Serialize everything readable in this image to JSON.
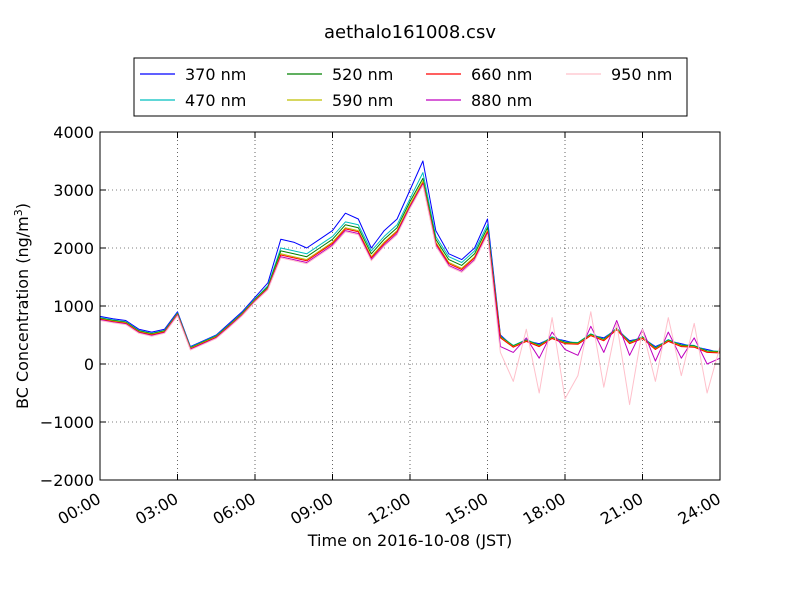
{
  "chart_data": {
    "type": "line",
    "title": "aethalo161008.csv",
    "xlabel": "Time on 2016-10-08 (JST)",
    "ylabel": "BC Concentration (ng/m³)",
    "ylabel_main": "BC Concentration (ng/m",
    "ylabel_sup": "3",
    "ylabel_end": ")",
    "xlim": [
      "00:00",
      "24:00"
    ],
    "ylim": [
      -2000,
      4000
    ],
    "x_ticks": [
      "00:00",
      "03:00",
      "06:00",
      "09:00",
      "12:00",
      "15:00",
      "18:00",
      "21:00",
      "24:00"
    ],
    "y_ticks": [
      "4000",
      "3000",
      "2000",
      "1000",
      "0",
      "−1000",
      "−2000"
    ],
    "grid": true,
    "legend_position": "top-center",
    "x_hours": [
      0,
      0.5,
      1,
      1.5,
      2,
      2.5,
      3,
      3.5,
      4,
      4.5,
      5,
      5.5,
      6,
      6.5,
      7,
      7.5,
      8,
      8.5,
      9,
      9.5,
      10,
      10.5,
      11,
      11.5,
      12,
      12.5,
      13,
      13.5,
      14,
      14.5,
      15,
      15.5,
      16,
      16.5,
      17,
      17.5,
      18,
      18.5,
      19,
      19.5,
      20,
      20.5,
      21,
      21.5,
      22,
      22.5,
      23,
      23.5,
      24
    ],
    "series": [
      {
        "name": "370 nm",
        "color": "#0000ff",
        "values": [
          820,
          780,
          750,
          600,
          550,
          600,
          900,
          300,
          400,
          500,
          700,
          900,
          1150,
          1400,
          2150,
          2100,
          2000,
          2150,
          2300,
          2600,
          2500,
          2000,
          2300,
          2500,
          3000,
          3500,
          2300,
          1900,
          1800,
          2000,
          2500,
          500,
          300,
          400,
          350,
          450,
          400,
          350,
          500,
          450,
          600,
          400,
          450,
          300,
          400,
          350,
          300,
          250,
          200
        ]
      },
      {
        "name": "470 nm",
        "color": "#00bfbf",
        "values": [
          800,
          760,
          730,
          580,
          530,
          580,
          880,
          290,
          390,
          490,
          680,
          880,
          1120,
          1350,
          2000,
          1950,
          1900,
          2050,
          2200,
          2450,
          2400,
          1950,
          2200,
          2400,
          2850,
          3300,
          2200,
          1850,
          1750,
          1950,
          2400,
          480,
          320,
          420,
          330,
          470,
          380,
          370,
          520,
          430,
          620,
          380,
          470,
          280,
          420,
          330,
          320,
          230,
          220
        ]
      },
      {
        "name": "520 nm",
        "color": "#008000",
        "values": [
          790,
          750,
          720,
          570,
          520,
          570,
          870,
          280,
          380,
          480,
          670,
          870,
          1110,
          1330,
          1950,
          1900,
          1850,
          2000,
          2150,
          2400,
          2350,
          1900,
          2150,
          2350,
          2800,
          3200,
          2150,
          1800,
          1700,
          1900,
          2350,
          470,
          310,
          410,
          320,
          460,
          370,
          360,
          510,
          420,
          610,
          370,
          460,
          270,
          410,
          320,
          310,
          220,
          210
        ]
      },
      {
        "name": "590 nm",
        "color": "#bfbf00",
        "values": [
          780,
          740,
          710,
          560,
          510,
          560,
          860,
          270,
          370,
          470,
          660,
          860,
          1100,
          1310,
          1900,
          1850,
          1800,
          1950,
          2100,
          2350,
          2300,
          1850,
          2100,
          2300,
          2750,
          3150,
          2100,
          1750,
          1650,
          1850,
          2300,
          460,
          300,
          400,
          310,
          450,
          360,
          350,
          500,
          410,
          600,
          360,
          450,
          260,
          400,
          310,
          300,
          210,
          200
        ]
      },
      {
        "name": "660 nm",
        "color": "#ff0000",
        "values": [
          770,
          730,
          700,
          550,
          500,
          550,
          850,
          260,
          360,
          460,
          650,
          850,
          1090,
          1300,
          1880,
          1830,
          1780,
          1930,
          2080,
          2330,
          2280,
          1830,
          2080,
          2280,
          2720,
          3120,
          2080,
          1730,
          1630,
          1830,
          2280,
          450,
          290,
          390,
          300,
          440,
          350,
          340,
          490,
          400,
          590,
          350,
          440,
          250,
          390,
          300,
          290,
          200,
          190
        ]
      },
      {
        "name": "880 nm",
        "color": "#bf00bf",
        "values": [
          760,
          720,
          690,
          540,
          490,
          540,
          840,
          250,
          350,
          450,
          640,
          840,
          1080,
          1290,
          1850,
          1800,
          1750,
          1900,
          2050,
          2300,
          2250,
          1800,
          2050,
          2250,
          2700,
          3100,
          2050,
          1700,
          1600,
          1800,
          2250,
          300,
          200,
          450,
          100,
          550,
          250,
          150,
          650,
          200,
          750,
          150,
          600,
          50,
          550,
          100,
          450,
          0,
          100
        ]
      },
      {
        "name": "950 nm",
        "color": "#ffc0cb",
        "values": [
          750,
          710,
          680,
          530,
          480,
          530,
          830,
          240,
          340,
          440,
          630,
          830,
          1070,
          1280,
          1830,
          1780,
          1730,
          1880,
          2030,
          2280,
          2230,
          1780,
          2030,
          2230,
          2680,
          3080,
          2030,
          1680,
          1580,
          1780,
          2230,
          200,
          -300,
          600,
          -500,
          800,
          -600,
          -200,
          900,
          -400,
          700,
          -700,
          600,
          -300,
          800,
          -200,
          700,
          -500,
          300
        ]
      }
    ]
  }
}
